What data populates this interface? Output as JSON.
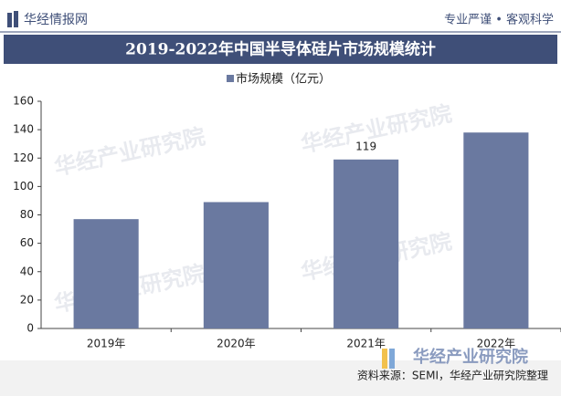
{
  "header": {
    "brand": "华经情报网",
    "slogan": "专业严谨 • 客观科学"
  },
  "chart_data": {
    "type": "bar",
    "title": "2019-2022年中国半导体硅片市场规模统计",
    "categories": [
      "2019年",
      "2020年",
      "2021年",
      "2022年"
    ],
    "series": [
      {
        "name": "市场规模（亿元）",
        "color": "#6a79a0",
        "values": [
          77,
          89,
          119,
          138
        ]
      }
    ],
    "value_labels": [
      null,
      null,
      "119",
      null
    ],
    "ylim": [
      0,
      160
    ],
    "yticks": [
      0,
      20,
      40,
      60,
      80,
      100,
      120,
      140,
      160
    ],
    "grid": false,
    "legend": "top"
  },
  "source": "资料来源：SEMI，华经产业研究院整理",
  "watermark": "华经产业研究院"
}
